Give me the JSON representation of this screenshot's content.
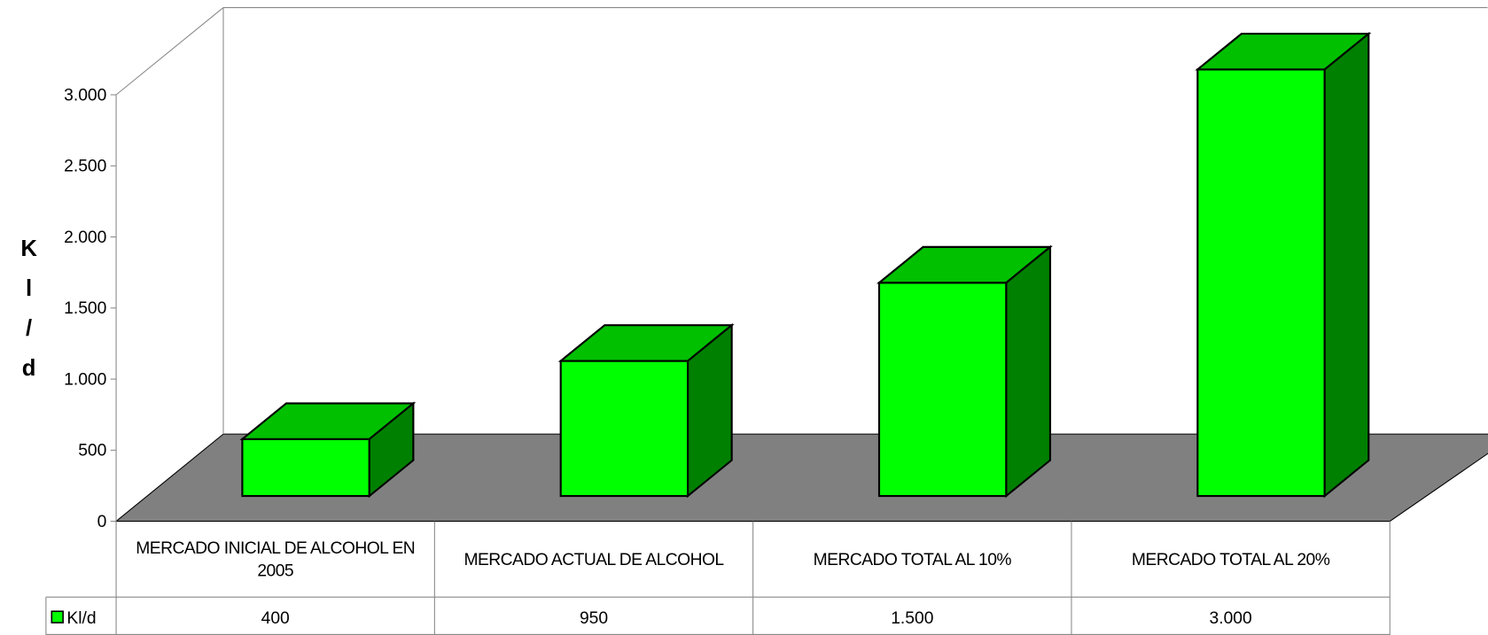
{
  "chart_data": {
    "type": "bar3d",
    "y_label": "Kl/d",
    "categories": [
      "MERCADO INICIAL DE ALCOHOL EN 2005",
      "MERCADO ACTUAL DE ALCOHOL",
      "MERCADO TOTAL AL 10%",
      "MERCADO TOTAL AL 20%"
    ],
    "series": [
      {
        "name": "Kl/d",
        "color": "#00ff00",
        "values": [
          400,
          950,
          1500,
          3000
        ],
        "value_labels": [
          "400",
          "950",
          "1.500",
          "3.000"
        ]
      }
    ],
    "ylim": [
      0,
      3000
    ],
    "yticks": [
      0,
      500,
      {
        "value": 1000,
        "label": "1.000"
      },
      {
        "value": 1500,
        "label": "1.500"
      },
      {
        "value": 2000,
        "label": "2.000"
      },
      {
        "value": 2500,
        "label": "2.500"
      },
      {
        "value": 3000,
        "label": "3.000"
      }
    ],
    "floor_color": "#808080",
    "data_table": true
  }
}
